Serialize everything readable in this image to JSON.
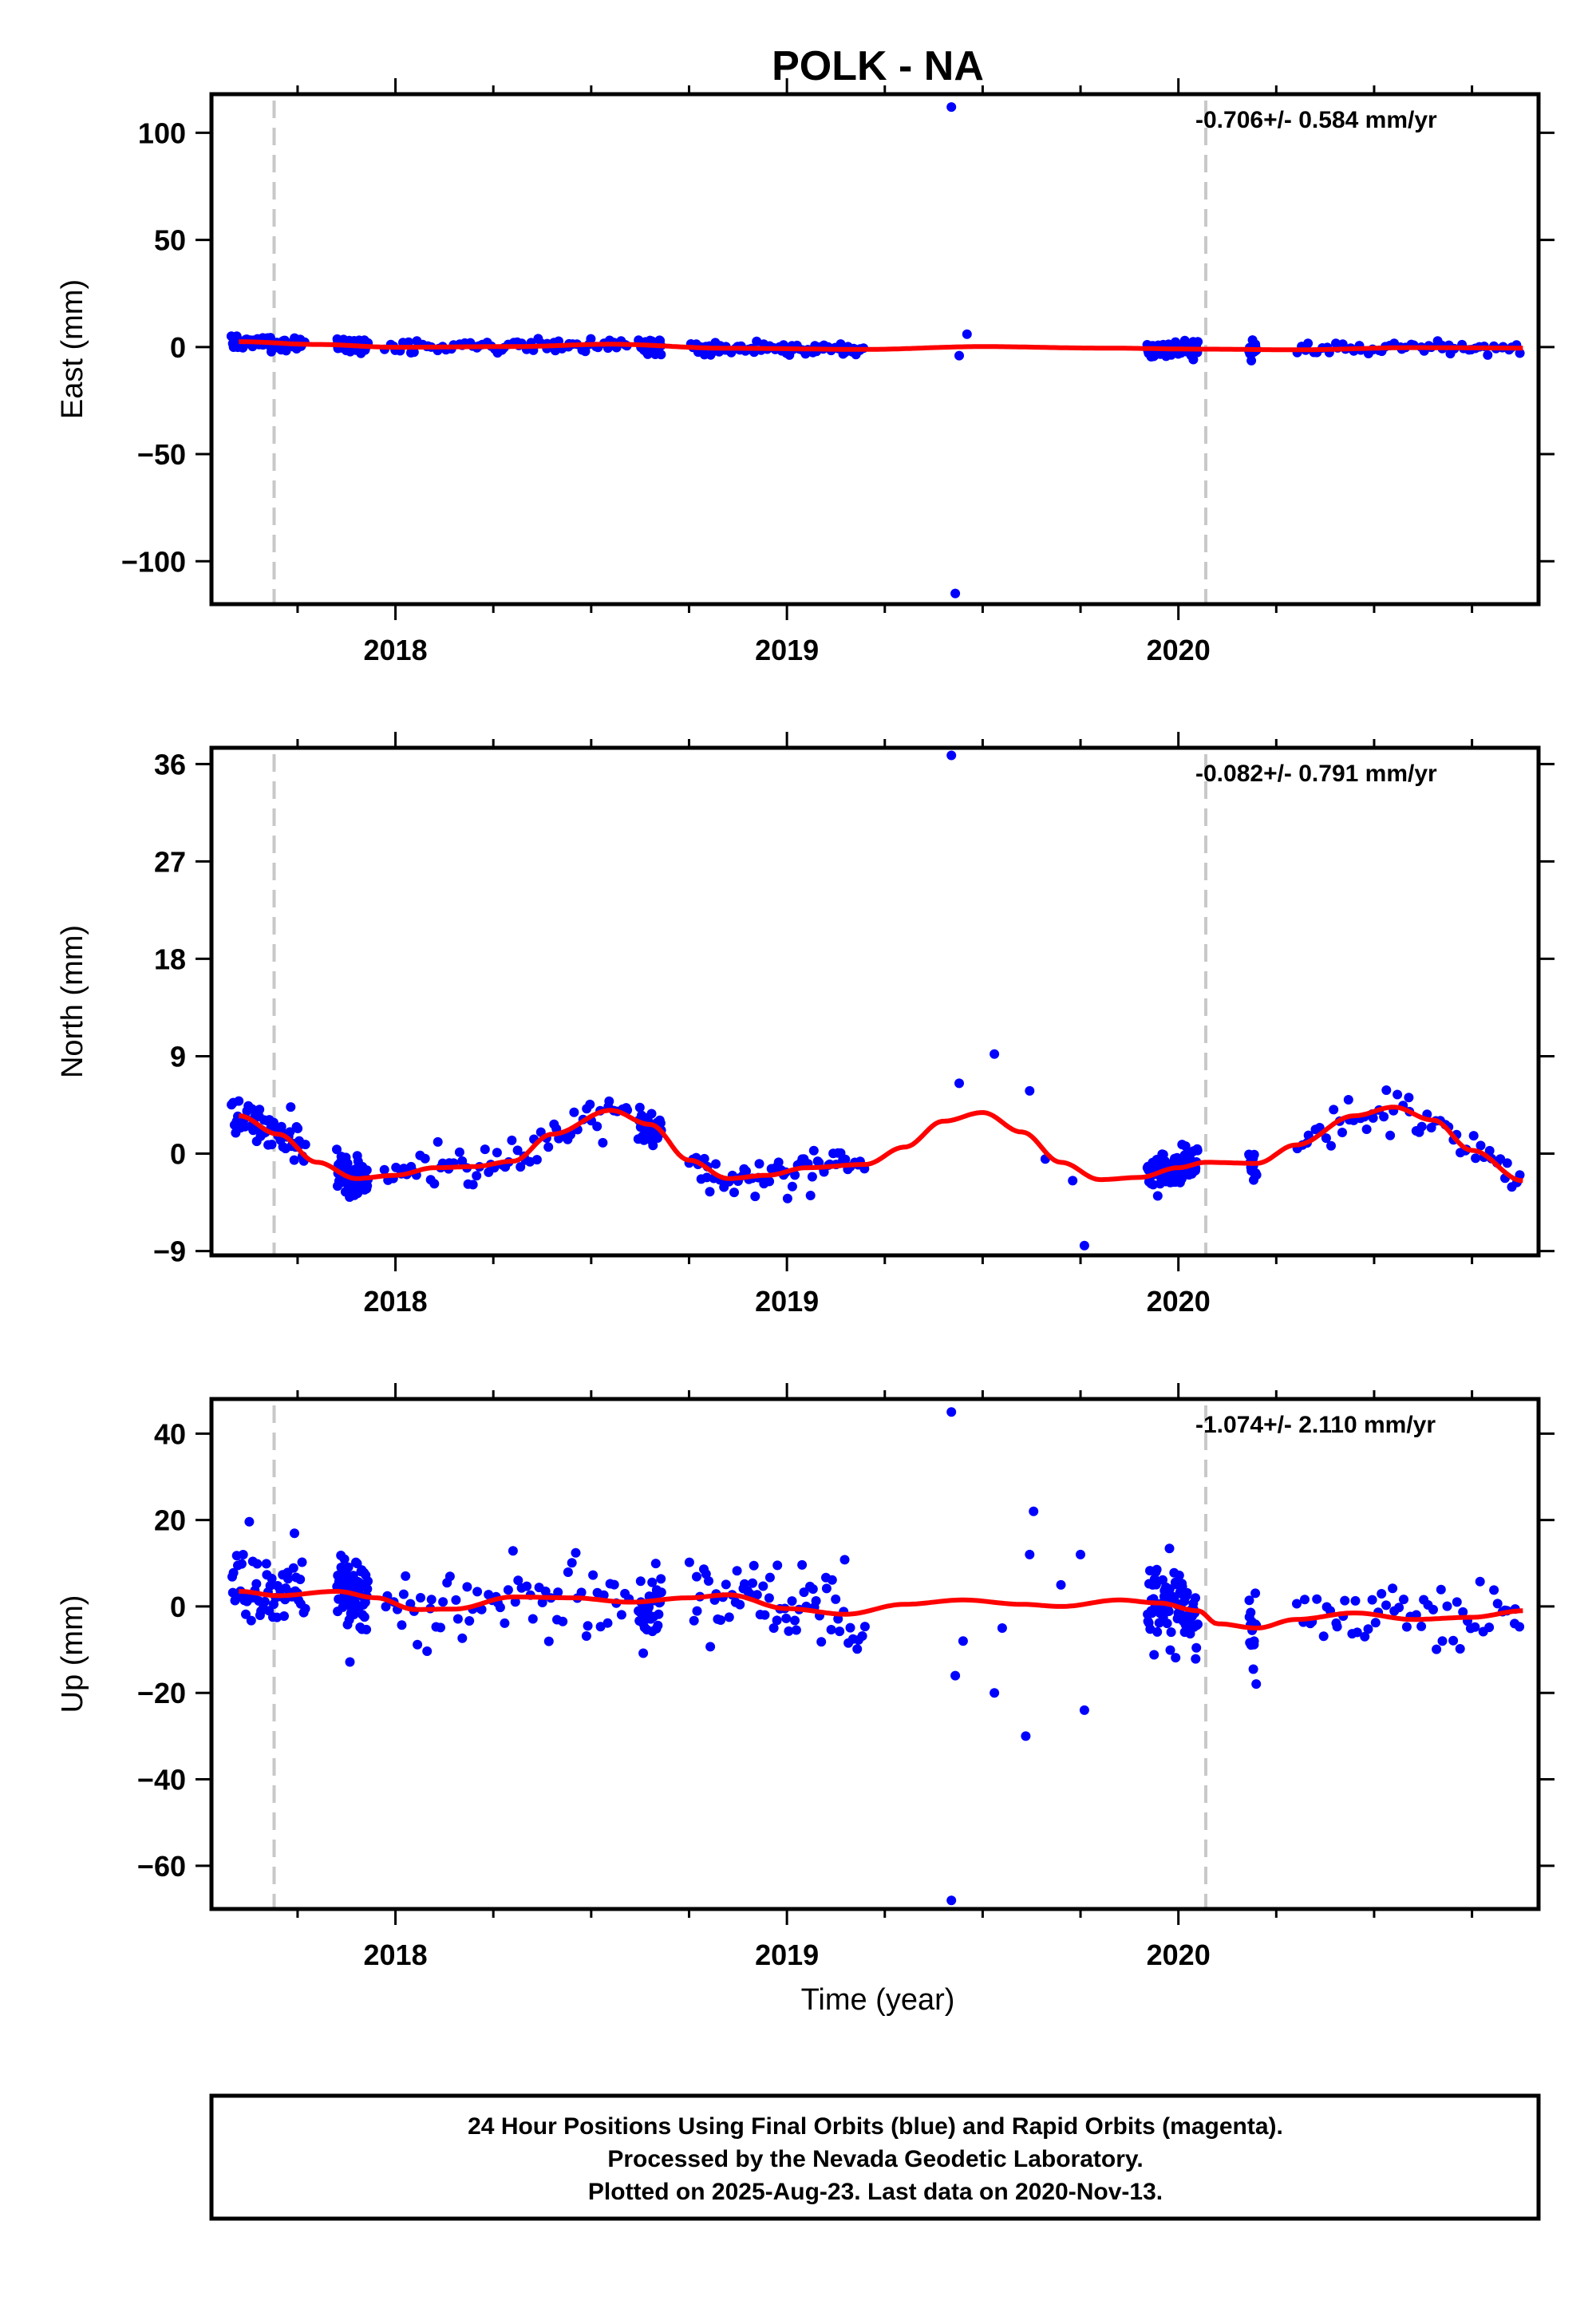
{
  "title": "POLK - NA",
  "xlabel": "Time (year)",
  "footer": {
    "lines": [
      "24 Hour Positions Using Final Orbits (blue) and Rapid Orbits (magenta).",
      "Processed by the Nevada Geodetic Laboratory.",
      "Plotted on 2025-Aug-23. Last data on 2020-Nov-13."
    ]
  },
  "colors": {
    "points": "#0000ff",
    "model": "#ff0000",
    "dashed": "#c8c8c8",
    "frame": "#000000"
  },
  "chart_data": [
    {
      "type": "scatter",
      "component": "east",
      "ylabel": "East (mm)",
      "rate": "-0.706+/- 0.584 mm/yr",
      "xlim": [
        2017.53,
        2020.92
      ],
      "ylim": [
        -120,
        118
      ],
      "yticks": [
        -100,
        -50,
        0,
        50,
        100
      ],
      "xticks": [
        2018,
        2019,
        2020
      ],
      "dashed_lines": [
        2017.69,
        2020.07
      ],
      "noise": 1.6,
      "outliers": [
        [
          2019.42,
          112
        ],
        [
          2019.43,
          -115
        ],
        [
          2019.46,
          6
        ],
        [
          2019.44,
          -4
        ]
      ],
      "model": [
        [
          2017.6,
          2.5
        ],
        [
          2017.8,
          1.2
        ],
        [
          2018.0,
          -0.1
        ],
        [
          2018.3,
          0.2
        ],
        [
          2018.55,
          1.3
        ],
        [
          2018.85,
          -0.6
        ],
        [
          2019.2,
          -1.1
        ],
        [
          2019.5,
          0.2
        ],
        [
          2019.8,
          -0.5
        ],
        [
          2020.07,
          -1.0
        ],
        [
          2020.3,
          -1.3
        ],
        [
          2020.6,
          -0.3
        ],
        [
          2020.88,
          -0.5
        ]
      ]
    },
    {
      "type": "scatter",
      "component": "north",
      "ylabel": "North (mm)",
      "rate": "-0.082+/- 0.791 mm/yr",
      "xlim": [
        2017.53,
        2020.92
      ],
      "ylim": [
        -9.4,
        37.5
      ],
      "yticks": [
        -9,
        0,
        9,
        18,
        27,
        36
      ],
      "xticks": [
        2018,
        2019,
        2020
      ],
      "dashed_lines": [
        2017.69,
        2020.07
      ],
      "noise": 0.85,
      "outliers": [
        [
          2019.42,
          36.8
        ],
        [
          2019.53,
          9.2
        ],
        [
          2019.76,
          -8.5
        ],
        [
          2019.44,
          6.5
        ],
        [
          2019.62,
          5.8
        ],
        [
          2019.66,
          -0.5
        ],
        [
          2019.73,
          -2.5
        ]
      ],
      "model": [
        [
          2017.6,
          3.5
        ],
        [
          2017.7,
          1.8
        ],
        [
          2017.8,
          -0.8
        ],
        [
          2017.9,
          -2.3
        ],
        [
          2018.0,
          -2.0
        ],
        [
          2018.1,
          -1.3
        ],
        [
          2018.2,
          -1.2
        ],
        [
          2018.3,
          -0.7
        ],
        [
          2018.4,
          1.8
        ],
        [
          2018.55,
          4.0
        ],
        [
          2018.65,
          2.7
        ],
        [
          2018.75,
          -0.6
        ],
        [
          2018.85,
          -2.3
        ],
        [
          2018.95,
          -2.0
        ],
        [
          2019.05,
          -1.3
        ],
        [
          2019.2,
          -1.0
        ],
        [
          2019.3,
          0.6
        ],
        [
          2019.4,
          3.0
        ],
        [
          2019.5,
          3.8
        ],
        [
          2019.6,
          2.0
        ],
        [
          2019.7,
          -0.8
        ],
        [
          2019.8,
          -2.4
        ],
        [
          2019.9,
          -2.2
        ],
        [
          2020.0,
          -1.3
        ],
        [
          2020.07,
          -0.8
        ],
        [
          2020.2,
          -0.9
        ],
        [
          2020.3,
          0.8
        ],
        [
          2020.45,
          3.5
        ],
        [
          2020.55,
          4.3
        ],
        [
          2020.65,
          3.1
        ],
        [
          2020.75,
          0.3
        ],
        [
          2020.88,
          -2.5
        ]
      ]
    },
    {
      "type": "scatter",
      "component": "up",
      "ylabel": "Up (mm)",
      "rate": "-1.074+/- 2.110 mm/yr",
      "xlim": [
        2017.53,
        2020.92
      ],
      "ylim": [
        -70,
        48
      ],
      "yticks": [
        -60,
        -40,
        -20,
        0,
        20,
        40
      ],
      "xticks": [
        2018,
        2019,
        2020
      ],
      "dashed_lines": [
        2017.69,
        2020.07
      ],
      "noise": 4.6,
      "outliers": [
        [
          2019.42,
          45
        ],
        [
          2019.42,
          -68
        ],
        [
          2019.63,
          22
        ],
        [
          2019.61,
          -30
        ],
        [
          2019.76,
          -24
        ],
        [
          2019.53,
          -20
        ],
        [
          2019.43,
          -16
        ],
        [
          2019.62,
          12
        ],
        [
          2019.75,
          12
        ],
        [
          2019.45,
          -8
        ],
        [
          2019.55,
          -5
        ],
        [
          2019.7,
          5
        ]
      ],
      "model": [
        [
          2017.6,
          3.5
        ],
        [
          2017.7,
          2.5
        ],
        [
          2017.85,
          3.5
        ],
        [
          2017.95,
          2.0
        ],
        [
          2018.05,
          -0.7
        ],
        [
          2018.15,
          -0.6
        ],
        [
          2018.3,
          2.2
        ],
        [
          2018.45,
          2.0
        ],
        [
          2018.6,
          1.0
        ],
        [
          2018.75,
          2.0
        ],
        [
          2018.85,
          2.7
        ],
        [
          2019.0,
          -0.5
        ],
        [
          2019.15,
          -1.8
        ],
        [
          2019.3,
          0.5
        ],
        [
          2019.45,
          1.5
        ],
        [
          2019.6,
          0.5
        ],
        [
          2019.7,
          0.0
        ],
        [
          2019.85,
          1.5
        ],
        [
          2019.95,
          0.8
        ],
        [
          2020.05,
          -1.0
        ],
        [
          2020.1,
          -4.0
        ],
        [
          2020.2,
          -5.0
        ],
        [
          2020.3,
          -3.0
        ],
        [
          2020.45,
          -1.5
        ],
        [
          2020.6,
          -3.0
        ],
        [
          2020.75,
          -2.5
        ],
        [
          2020.88,
          -1.0
        ]
      ]
    }
  ],
  "data_segments": [
    [
      2017.58,
      2017.77,
      1.1
    ],
    [
      2017.85,
      2017.93,
      0.45
    ],
    [
      2017.97,
      2018.6,
      3.4
    ],
    [
      2018.62,
      2018.68,
      0.6
    ],
    [
      2018.75,
      2019.2,
      2.4
    ],
    [
      2019.92,
      2020.05,
      0.55
    ],
    [
      2020.18,
      2020.2,
      0.4
    ],
    [
      2020.3,
      2020.88,
      3.8
    ]
  ]
}
